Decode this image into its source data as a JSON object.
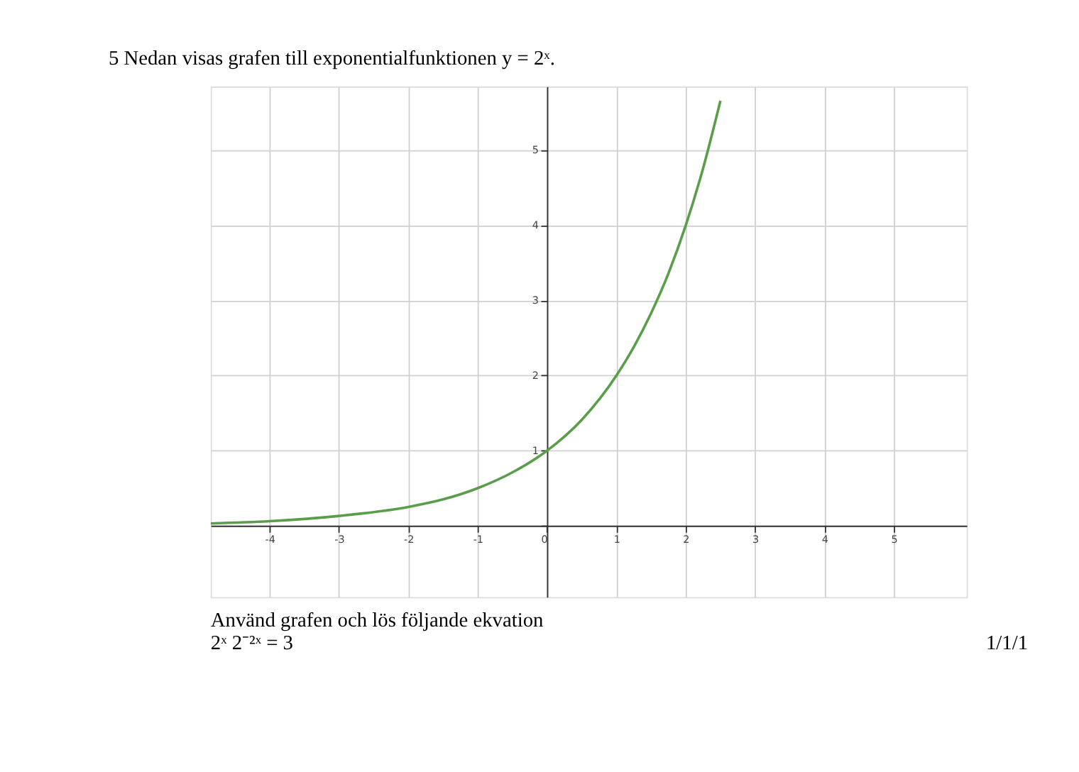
{
  "chart_data": {
    "type": "line",
    "title": "5    Nedan visas grafen till exponentialfunktionen y = 2ˣ.",
    "annotations": [
      "Använd grafen och lös följande ekvation",
      "2ˣ 2⁻²ˣ = 3",
      "1/1/1"
    ],
    "x": [
      -4.85,
      -4,
      -3,
      -2,
      -1.5,
      -1,
      -0.5,
      0,
      0.5,
      1,
      1.25,
      1.5,
      1.75,
      2,
      2.25,
      2.5
    ],
    "series": [
      {
        "color": "#5a9e4b",
        "values": [
          0.03,
          0.06,
          0.13,
          0.25,
          0.35,
          0.5,
          0.71,
          1,
          1.41,
          2,
          2.38,
          2.83,
          3.36,
          4,
          4.76,
          5.66
        ]
      }
    ],
    "xlim": [
      -4.85,
      6.05
    ],
    "ylim": [
      -0.95,
      5.85
    ],
    "xticks": [
      -4,
      -3,
      -2,
      -1,
      0,
      1,
      2,
      3,
      4,
      5
    ],
    "yticks": [
      {
        "value": 0,
        "label": null
      },
      1,
      2,
      3,
      4,
      5
    ],
    "grid": true,
    "marker": "none",
    "line_style": "solid"
  }
}
